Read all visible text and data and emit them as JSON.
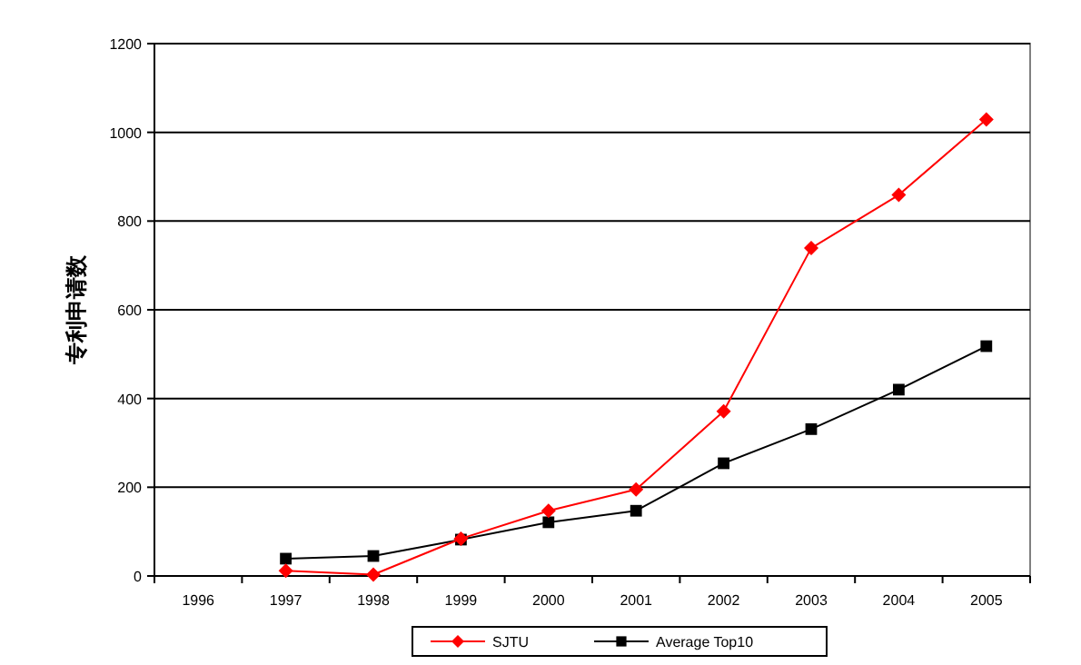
{
  "chart_data": {
    "type": "line",
    "ylabel": "专利申请数",
    "categories": [
      "1996",
      "1997",
      "1998",
      "1999",
      "2000",
      "2001",
      "2002",
      "2003",
      "2004",
      "2005"
    ],
    "series": [
      {
        "name": "SJTU",
        "color": "#ff0000",
        "marker": "diamond",
        "values": [
          null,
          12,
          3,
          84,
          147,
          195,
          371,
          739,
          859,
          1029
        ]
      },
      {
        "name": "Average Top10",
        "color": "#000000",
        "marker": "square",
        "values": [
          null,
          39,
          45,
          82,
          121,
          147,
          254,
          331,
          420,
          518
        ]
      }
    ],
    "ylim": [
      0,
      1200
    ],
    "yticks": [
      0,
      200,
      400,
      600,
      800,
      1000,
      1200
    ],
    "grid": "y",
    "legend": "bottom"
  }
}
